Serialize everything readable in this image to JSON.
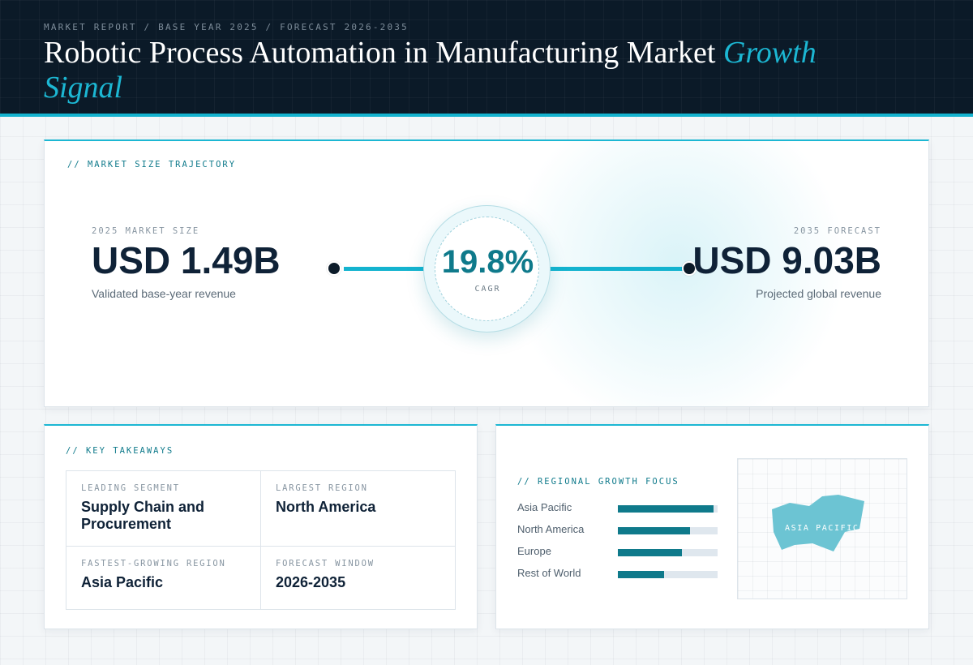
{
  "header": {
    "eyebrow": "MARKET REPORT / BASE YEAR 2025 / FORECAST 2026-2035",
    "title_main": "Robotic Process Automation in Manufacturing Market ",
    "title_accent": "Growth Signal"
  },
  "trajectory": {
    "label": "// MARKET SIZE TRAJECTORY",
    "start": {
      "caption": "2025 MARKET SIZE",
      "value": "USD 1.49B",
      "note": "Validated base-year revenue"
    },
    "cagr": {
      "value": "19.8%",
      "caption": "CAGR"
    },
    "end": {
      "caption": "2035 FORECAST",
      "value": "USD 9.03B",
      "note": "Projected global revenue"
    }
  },
  "takeaways": {
    "label": "// KEY TAKEAWAYS",
    "items": [
      {
        "caption": "LEADING SEGMENT",
        "value": "Supply Chain and Procurement"
      },
      {
        "caption": "LARGEST REGION",
        "value": "North America"
      },
      {
        "caption": "FASTEST-GROWING REGION",
        "value": "Asia Pacific"
      },
      {
        "caption": "FORECAST WINDOW",
        "value": "2026-2035"
      }
    ]
  },
  "regional": {
    "label": "// REGIONAL GROWTH FOCUS",
    "bars": [
      {
        "name": "Asia Pacific",
        "level": 0.96
      },
      {
        "name": "North America",
        "level": 0.72
      },
      {
        "name": "Europe",
        "level": 0.64
      },
      {
        "name": "Rest of World",
        "level": 0.46
      }
    ],
    "map_label": "ASIA PACIFIC",
    "colors": {
      "bar": "#0f7a8b",
      "track": "#dfe7ee",
      "map": "#6cc4d3"
    }
  }
}
